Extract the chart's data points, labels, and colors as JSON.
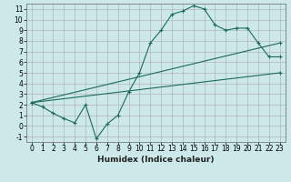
{
  "title": "",
  "xlabel": "Humidex (Indice chaleur)",
  "ylabel": "",
  "background_color": "#cce8e8",
  "grid_color": "#aaaaaa",
  "line_color": "#1a6b5a",
  "xlim": [
    -0.5,
    23.5
  ],
  "ylim": [
    -1.5,
    11.5
  ],
  "xticks": [
    0,
    1,
    2,
    3,
    4,
    5,
    6,
    7,
    8,
    9,
    10,
    11,
    12,
    13,
    14,
    15,
    16,
    17,
    18,
    19,
    20,
    21,
    22,
    23
  ],
  "yticks": [
    -1,
    0,
    1,
    2,
    3,
    4,
    5,
    6,
    7,
    8,
    9,
    10,
    11
  ],
  "line1_x": [
    0,
    1,
    2,
    3,
    4,
    5,
    6,
    7,
    8,
    9,
    10,
    11,
    12,
    13,
    14,
    15,
    16,
    17,
    18,
    19,
    20,
    21,
    22,
    23
  ],
  "line1_y": [
    2.2,
    1.8,
    1.2,
    0.7,
    0.3,
    2.0,
    -1.2,
    0.2,
    1.0,
    3.2,
    5.0,
    7.8,
    9.0,
    10.5,
    10.8,
    11.3,
    11.0,
    9.5,
    9.0,
    9.2,
    9.2,
    7.8,
    6.5,
    6.5
  ],
  "line2_x": [
    0,
    23
  ],
  "line2_y": [
    2.2,
    7.8
  ],
  "line3_x": [
    0,
    23
  ],
  "line3_y": [
    2.2,
    5.0
  ],
  "tick_fontsize": 5.5,
  "xlabel_fontsize": 6.5
}
